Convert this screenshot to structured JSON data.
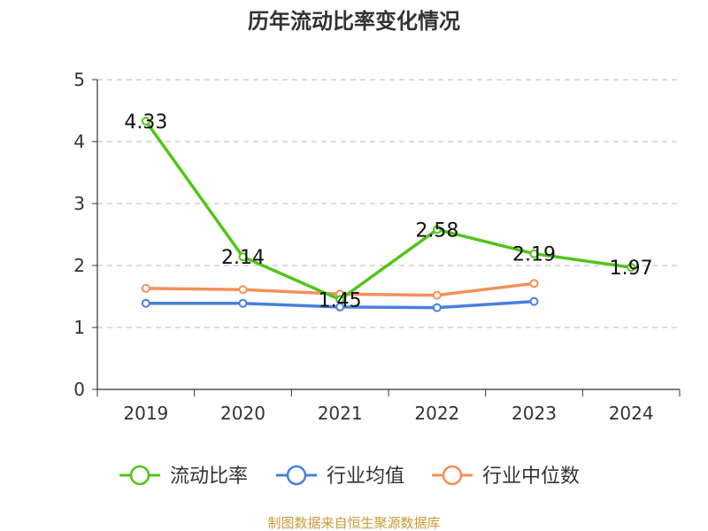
{
  "chart_data": {
    "type": "line",
    "title": "历年流动比率变化情况",
    "xlabel": "",
    "ylabel": "",
    "categories": [
      "2019",
      "2020",
      "2021",
      "2022",
      "2023",
      "2024"
    ],
    "ylim": [
      0,
      5
    ],
    "yticks": [
      "0",
      "1",
      "2",
      "3",
      "4",
      "5"
    ],
    "grid": true,
    "legend_position": "bottom",
    "series": [
      {
        "name": "流动比率",
        "color": "#52c41a",
        "values": [
          4.33,
          2.14,
          1.45,
          2.58,
          2.19,
          1.97
        ],
        "data_labels": [
          "4.33",
          "2.14",
          "1.45",
          "2.58",
          "2.19",
          "1.97"
        ]
      },
      {
        "name": "行业均值",
        "color": "#4a7fdc",
        "values": [
          1.39,
          1.39,
          1.33,
          1.32,
          1.42,
          null
        ]
      },
      {
        "name": "行业中位数",
        "color": "#f39058",
        "values": [
          1.63,
          1.61,
          1.54,
          1.52,
          1.71,
          null
        ]
      }
    ]
  },
  "source_note": "制图数据来自恒生聚源数据库"
}
